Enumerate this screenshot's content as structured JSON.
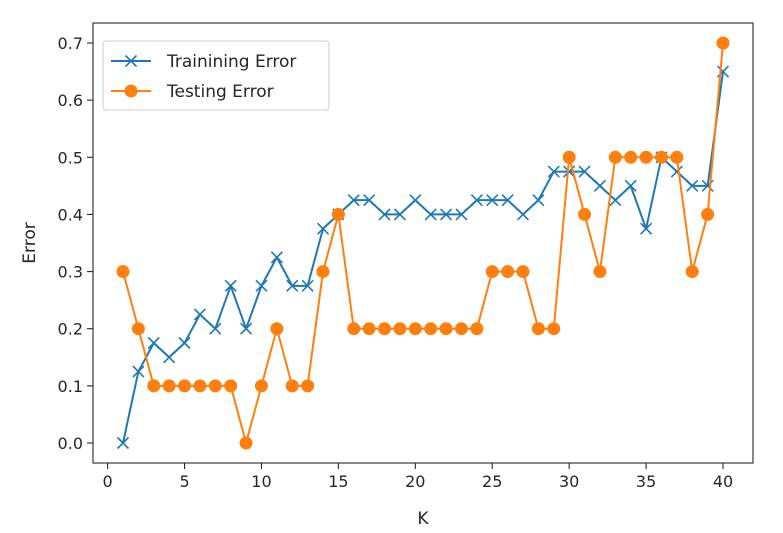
{
  "chart_data": {
    "type": "line",
    "title": "",
    "xlabel": "K",
    "ylabel": "Error",
    "xlim": [
      -0.95,
      41.95
    ],
    "ylim": [
      -0.035,
      0.735
    ],
    "x_ticks": [
      0,
      5,
      10,
      15,
      20,
      25,
      30,
      35,
      40
    ],
    "y_ticks": [
      0.0,
      0.1,
      0.2,
      0.3,
      0.4,
      0.5,
      0.6,
      0.7
    ],
    "x_tick_labels": [
      "0",
      "5",
      "10",
      "15",
      "20",
      "25",
      "30",
      "35",
      "40"
    ],
    "y_tick_labels": [
      "0.0",
      "0.1",
      "0.2",
      "0.3",
      "0.4",
      "0.5",
      "0.6",
      "0.7"
    ],
    "grid": false,
    "legend_position": "top-left",
    "x": [
      1,
      2,
      3,
      4,
      5,
      6,
      7,
      8,
      9,
      10,
      11,
      12,
      13,
      14,
      15,
      16,
      17,
      18,
      19,
      20,
      21,
      22,
      23,
      24,
      25,
      26,
      27,
      28,
      29,
      30,
      31,
      32,
      33,
      34,
      35,
      36,
      37,
      38,
      39,
      40
    ],
    "series": [
      {
        "name": "Trainining Error",
        "color": "#1f77b4",
        "marker": "x",
        "values": [
          0.0,
          0.125,
          0.175,
          0.15,
          0.175,
          0.225,
          0.2,
          0.275,
          0.2,
          0.275,
          0.325,
          0.275,
          0.275,
          0.375,
          0.4,
          0.425,
          0.425,
          0.4,
          0.4,
          0.425,
          0.4,
          0.4,
          0.4,
          0.425,
          0.425,
          0.425,
          0.4,
          0.425,
          0.475,
          0.475,
          0.475,
          0.45,
          0.425,
          0.45,
          0.375,
          0.5,
          0.475,
          0.45,
          0.45,
          0.65
        ]
      },
      {
        "name": "Testing Error",
        "color": "#ff7f0e",
        "marker": "o",
        "values": [
          0.3,
          0.2,
          0.1,
          0.1,
          0.1,
          0.1,
          0.1,
          0.1,
          0.0,
          0.1,
          0.2,
          0.1,
          0.1,
          0.3,
          0.4,
          0.2,
          0.2,
          0.2,
          0.2,
          0.2,
          0.2,
          0.2,
          0.2,
          0.2,
          0.3,
          0.3,
          0.3,
          0.2,
          0.2,
          0.5,
          0.4,
          0.3,
          0.5,
          0.5,
          0.5,
          0.5,
          0.5,
          0.3,
          0.4,
          0.7
        ]
      }
    ]
  }
}
